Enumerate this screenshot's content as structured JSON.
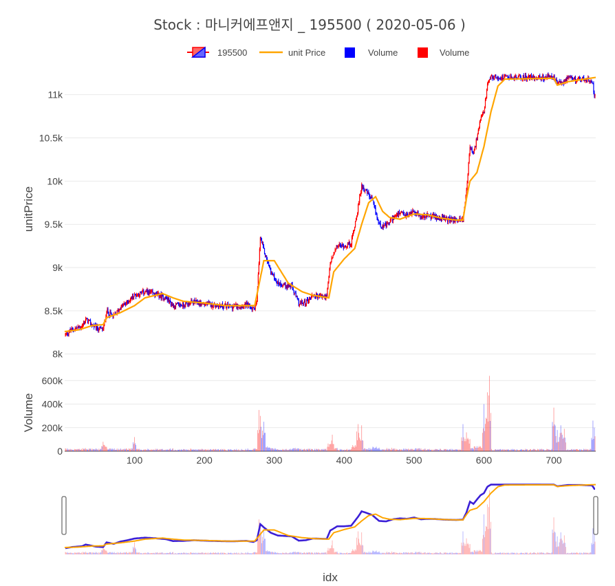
{
  "chart_data": {
    "type": "candlestick",
    "title": "Stock :  마니커에프앤지 _ 195500 ( 2020-05-06 )",
    "xlabel": "idx",
    "ylabel_price": "unitPrice",
    "ylabel_volume": "Volume",
    "x_ticks": [
      "100",
      "200",
      "300",
      "400",
      "500",
      "600",
      "700"
    ],
    "x_tick_values": [
      100,
      200,
      300,
      400,
      500,
      600,
      700
    ],
    "price_ticks": [
      "8k",
      "8.5k",
      "9k",
      "9.5k",
      "10k",
      "10.5k",
      "11k"
    ],
    "price_tick_values": [
      8000,
      8500,
      9000,
      9500,
      10000,
      10500,
      11000
    ],
    "volume_ticks": [
      "0",
      "200k",
      "400k",
      "600k"
    ],
    "volume_tick_values": [
      0,
      200000,
      400000,
      600000
    ],
    "xlim": [
      0,
      760
    ],
    "price_ylim": [
      7990,
      11220
    ],
    "volume_ylim": [
      0,
      660000
    ],
    "legend": [
      {
        "label": "195500",
        "kind": "candle"
      },
      {
        "label": "unit Price",
        "kind": "line"
      },
      {
        "label": "Volume",
        "kind": "bar-blue"
      },
      {
        "label": "Volume",
        "kind": "bar-red"
      }
    ],
    "colors": {
      "increasing": "#ff0000",
      "decreasing": "#0000ff",
      "line": "#ffa500",
      "grid": "#e9e9e9"
    },
    "price_anchors": [
      [
        0,
        8220
      ],
      [
        10,
        8280
      ],
      [
        25,
        8320
      ],
      [
        30,
        8400
      ],
      [
        45,
        8300
      ],
      [
        55,
        8280
      ],
      [
        60,
        8500
      ],
      [
        70,
        8430
      ],
      [
        80,
        8540
      ],
      [
        90,
        8600
      ],
      [
        100,
        8680
      ],
      [
        115,
        8720
      ],
      [
        130,
        8690
      ],
      [
        145,
        8650
      ],
      [
        155,
        8560
      ],
      [
        170,
        8570
      ],
      [
        185,
        8600
      ],
      [
        200,
        8580
      ],
      [
        220,
        8560
      ],
      [
        240,
        8550
      ],
      [
        260,
        8570
      ],
      [
        270,
        8520
      ],
      [
        275,
        8600
      ],
      [
        280,
        9350
      ],
      [
        285,
        9200
      ],
      [
        295,
        8950
      ],
      [
        305,
        8820
      ],
      [
        325,
        8780
      ],
      [
        335,
        8580
      ],
      [
        345,
        8600
      ],
      [
        355,
        8680
      ],
      [
        375,
        8660
      ],
      [
        380,
        9050
      ],
      [
        390,
        9250
      ],
      [
        400,
        9250
      ],
      [
        410,
        9280
      ],
      [
        420,
        9700
      ],
      [
        425,
        9950
      ],
      [
        430,
        9900
      ],
      [
        440,
        9780
      ],
      [
        450,
        9500
      ],
      [
        460,
        9480
      ],
      [
        470,
        9580
      ],
      [
        480,
        9620
      ],
      [
        490,
        9600
      ],
      [
        500,
        9660
      ],
      [
        510,
        9580
      ],
      [
        520,
        9600
      ],
      [
        530,
        9590
      ],
      [
        545,
        9560
      ],
      [
        560,
        9550
      ],
      [
        570,
        9560
      ],
      [
        575,
        9900
      ],
      [
        580,
        10400
      ],
      [
        585,
        10300
      ],
      [
        595,
        10700
      ],
      [
        600,
        10800
      ],
      [
        605,
        11100
      ],
      [
        610,
        11200
      ],
      [
        700,
        11200
      ],
      [
        705,
        11120
      ],
      [
        720,
        11180
      ],
      [
        740,
        11180
      ],
      [
        755,
        11160
      ],
      [
        758,
        11000
      ]
    ],
    "line_anchors": [
      [
        0,
        8260
      ],
      [
        20,
        8280
      ],
      [
        40,
        8330
      ],
      [
        55,
        8340
      ],
      [
        60,
        8420
      ],
      [
        80,
        8480
      ],
      [
        100,
        8560
      ],
      [
        115,
        8650
      ],
      [
        140,
        8700
      ],
      [
        155,
        8650
      ],
      [
        170,
        8610
      ],
      [
        200,
        8590
      ],
      [
        230,
        8560
      ],
      [
        260,
        8560
      ],
      [
        272,
        8560
      ],
      [
        278,
        8800
      ],
      [
        285,
        9080
      ],
      [
        300,
        9080
      ],
      [
        310,
        8950
      ],
      [
        320,
        8820
      ],
      [
        340,
        8720
      ],
      [
        355,
        8680
      ],
      [
        370,
        8660
      ],
      [
        378,
        8650
      ],
      [
        385,
        8950
      ],
      [
        400,
        9100
      ],
      [
        415,
        9220
      ],
      [
        425,
        9500
      ],
      [
        435,
        9750
      ],
      [
        445,
        9820
      ],
      [
        455,
        9650
      ],
      [
        465,
        9580
      ],
      [
        480,
        9560
      ],
      [
        500,
        9620
      ],
      [
        520,
        9610
      ],
      [
        540,
        9570
      ],
      [
        560,
        9550
      ],
      [
        570,
        9550
      ],
      [
        575,
        9800
      ],
      [
        580,
        10000
      ],
      [
        590,
        10100
      ],
      [
        600,
        10400
      ],
      [
        610,
        10800
      ],
      [
        620,
        11100
      ],
      [
        630,
        11180
      ],
      [
        700,
        11190
      ],
      [
        705,
        11110
      ],
      [
        720,
        11150
      ],
      [
        760,
        11200
      ]
    ],
    "volume_spikes": [
      [
        55,
        80000
      ],
      [
        100,
        120000
      ],
      [
        278,
        350000
      ],
      [
        280,
        300000
      ],
      [
        285,
        250000
      ],
      [
        383,
        140000
      ],
      [
        420,
        230000
      ],
      [
        425,
        220000
      ],
      [
        570,
        230000
      ],
      [
        575,
        160000
      ],
      [
        600,
        400000
      ],
      [
        605,
        500000
      ],
      [
        608,
        640000
      ],
      [
        700,
        370000
      ],
      [
        705,
        180000
      ],
      [
        710,
        220000
      ],
      [
        715,
        190000
      ],
      [
        756,
        260000
      ],
      [
        758,
        200000
      ]
    ]
  }
}
